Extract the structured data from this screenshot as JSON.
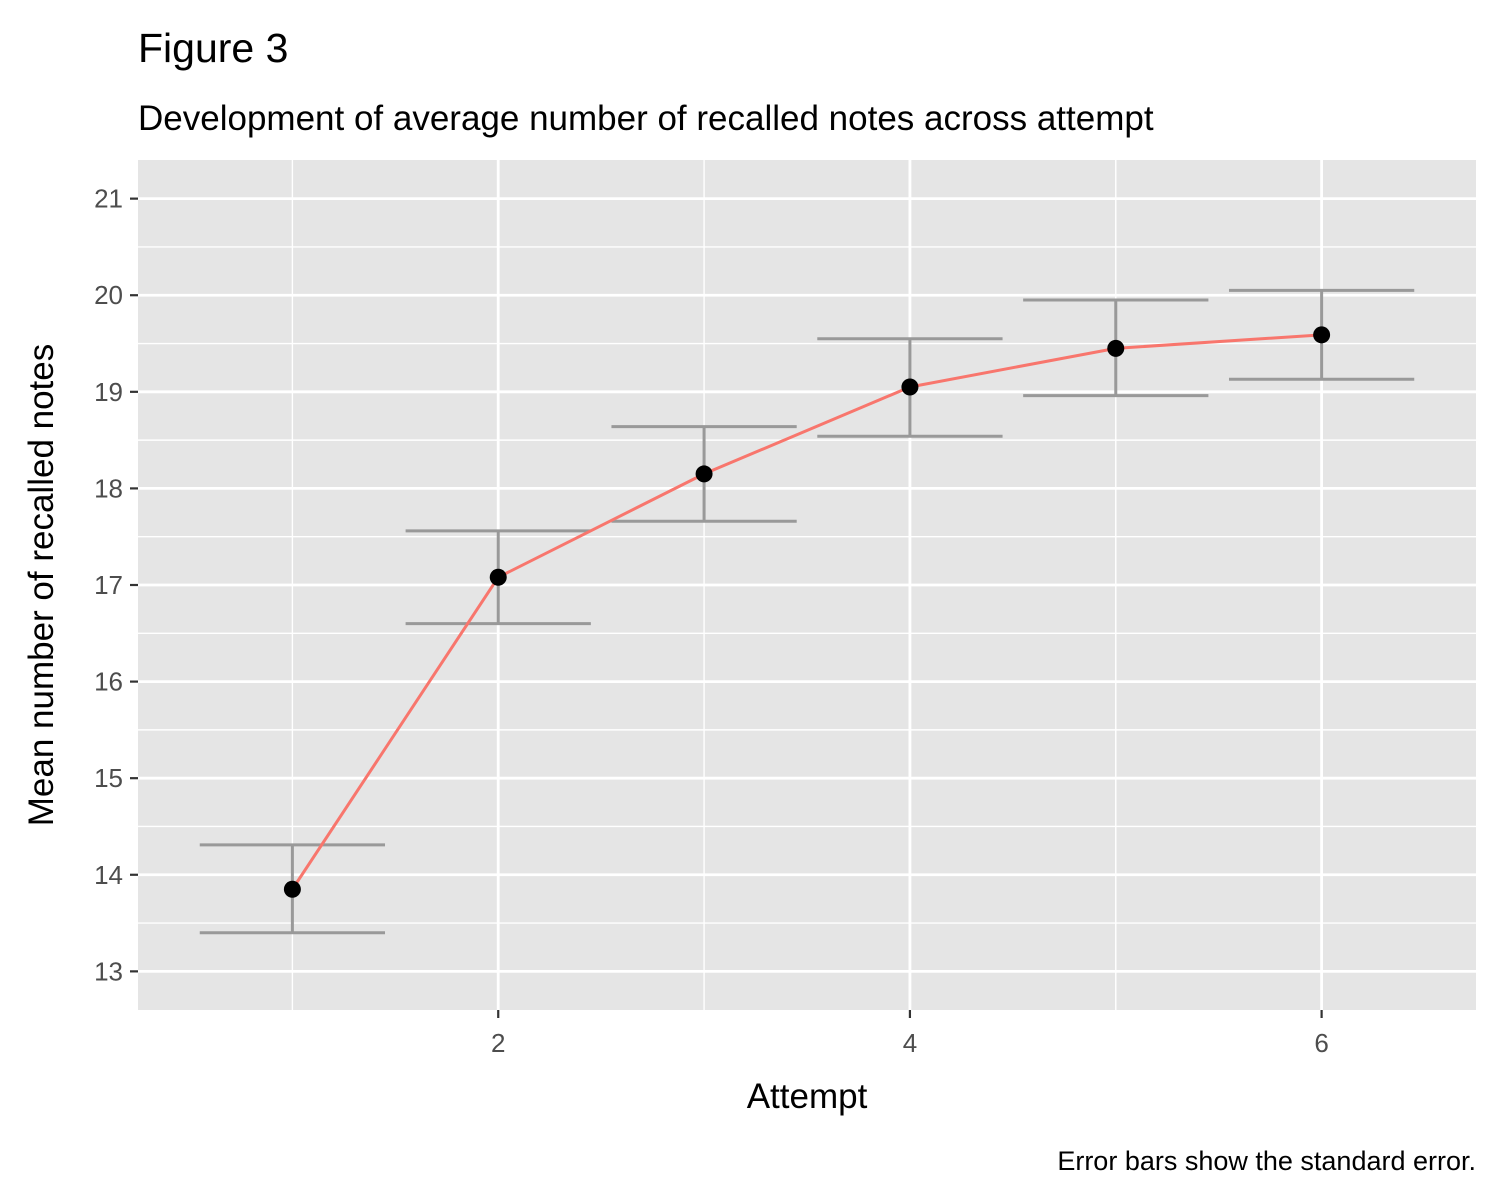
{
  "figure": {
    "title": "Figure 3",
    "subtitle": "Development of average number of recalled notes across attempt",
    "caption": "Error bars show the standard error."
  },
  "chart_data": {
    "type": "line",
    "xlabel": "Attempt",
    "ylabel": "Mean number of recalled notes",
    "x": [
      1,
      2,
      3,
      4,
      5,
      6
    ],
    "series": [
      {
        "values": [
          13.85,
          17.08,
          18.15,
          19.05,
          19.45,
          19.59
        ],
        "se_lower": [
          13.4,
          16.6,
          17.66,
          18.54,
          18.96,
          19.13
        ],
        "se_upper": [
          14.31,
          17.56,
          18.64,
          19.55,
          19.95,
          20.05
        ]
      }
    ],
    "xlim": [
      0.25,
      6.75
    ],
    "ylim": [
      12.6,
      21.4
    ],
    "xticks": [
      2,
      4,
      6
    ],
    "yticks": [
      13,
      14,
      15,
      16,
      17,
      18,
      19,
      20,
      21
    ],
    "grid": true,
    "colors": {
      "line": "#f8766d",
      "point": "#000000",
      "errorbar": "#999999",
      "panel": "#e5e5e5",
      "grid": "#ffffff"
    }
  }
}
